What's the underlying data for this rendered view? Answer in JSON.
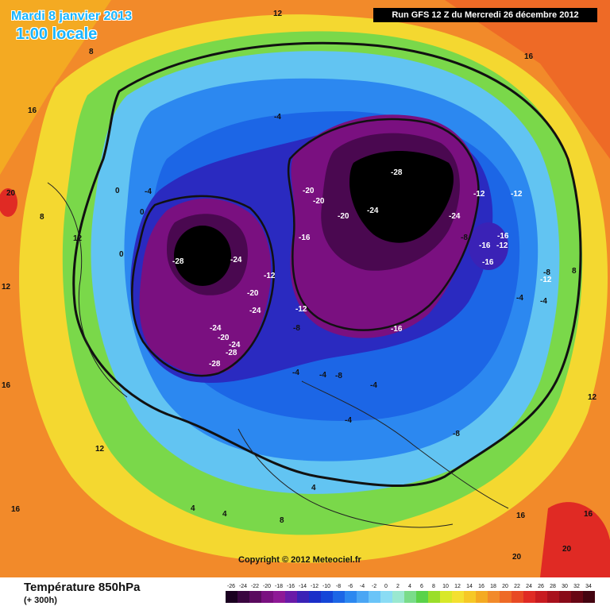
{
  "header": {
    "date": "Mardi 8 janvier 2013",
    "time": "1:00 locale",
    "run": "Run GFS 12 Z du Mercredi 26 décembre 2012",
    "copyright": "Copyright © 2012 Meteociel.fr"
  },
  "footer": {
    "title": "Température 850hPa",
    "subtitle": "(+ 300h)"
  },
  "legend": {
    "ticks": [
      "-26",
      "-24",
      "-22",
      "-20",
      "-18",
      "-16",
      "-14",
      "-12",
      "-10",
      "-8",
      "-6",
      "-4",
      "-2",
      "0",
      "2",
      "4",
      "6",
      "8",
      "10",
      "12",
      "14",
      "16",
      "18",
      "20",
      "22",
      "24",
      "26",
      "28",
      "30",
      "32",
      "34"
    ],
    "colors": [
      "#1a0020",
      "#3a0640",
      "#5a0a5e",
      "#7a1080",
      "#8e1896",
      "#6a1aa8",
      "#3a22b6",
      "#1a2ec8",
      "#1446d8",
      "#1c66e6",
      "#2c88f0",
      "#4aa6f4",
      "#6ac4f8",
      "#8adcf4",
      "#9ae8d0",
      "#7adc8a",
      "#5ad24a",
      "#9ade2a",
      "#d8e828",
      "#f4e030",
      "#f6c826",
      "#f4aa22",
      "#f28a2a",
      "#ee6a26",
      "#e84a24",
      "#e02a24",
      "#c81a20",
      "#a8101c",
      "#880a18",
      "#680614",
      "#440410"
    ]
  },
  "map": {
    "colors": {
      "warm": "#f28a2a",
      "yellow": "#f4d830",
      "green": "#7ad84a",
      "cyan": "#62c4f2",
      "blue": "#1c6ae6",
      "deepblue": "#2a2ac0",
      "purple": "#7a1080",
      "darkpurple": "#4a0850",
      "core": "#000000",
      "hot": "#e02a24"
    },
    "labels": [
      {
        "text": "12"
      },
      {
        "text": "8"
      },
      {
        "text": "16"
      },
      {
        "text": "20"
      },
      {
        "text": "4"
      },
      {
        "text": "0"
      },
      {
        "text": "-4"
      },
      {
        "text": "-8"
      },
      {
        "text": "-12"
      },
      {
        "text": "-16"
      },
      {
        "text": "-20"
      },
      {
        "text": "-24"
      },
      {
        "text": "-28"
      }
    ]
  }
}
